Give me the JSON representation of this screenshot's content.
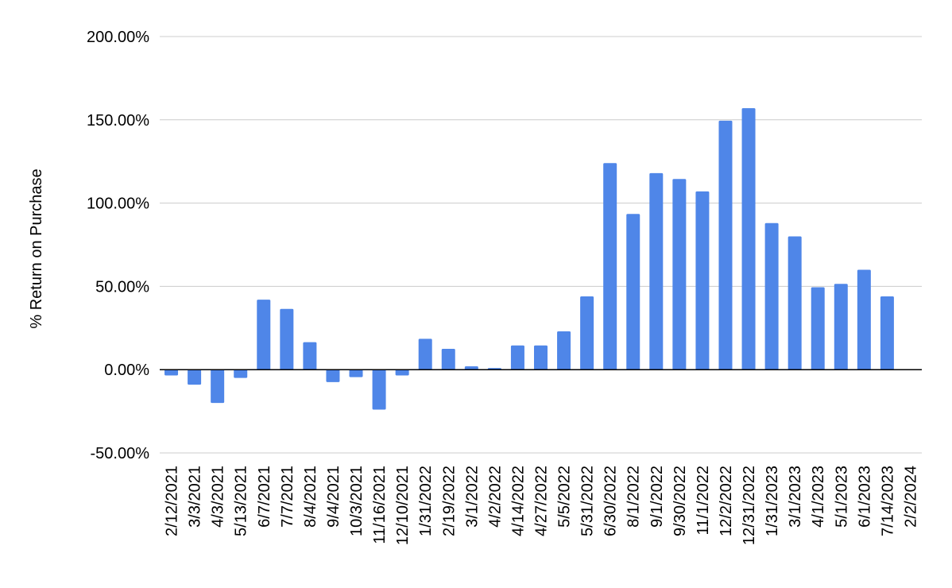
{
  "chart_data": {
    "type": "bar",
    "title": "",
    "xlabel": "",
    "ylabel": "% Return on Purchase",
    "ylim": [
      -50,
      200
    ],
    "yticks": [
      -50,
      0,
      50,
      100,
      150,
      200
    ],
    "ytick_labels": [
      "-50.00%",
      "0.00%",
      "50.00%",
      "100.00%",
      "150.00%",
      "200.00%"
    ],
    "grid": true,
    "legend": "none",
    "colors": {
      "bar": "#4f86e8",
      "grid": "#cccccc",
      "zero_line": "#000000"
    },
    "categories": [
      "2/12/2021",
      "3/3/2021",
      "4/3/2021",
      "5/13/2021",
      "6/7/2021",
      "7/7/2021",
      "8/4/2021",
      "9/4/2021",
      "10/3/2021",
      "11/16/2021",
      "12/10/2021",
      "1/31/2022",
      "2/19/2022",
      "3/1/2022",
      "4/2/2022",
      "4/14/2022",
      "4/27/2022",
      "5/5/2022",
      "5/31/2022",
      "6/30/2022",
      "8/1/2022",
      "9/1/2022",
      "9/30/2022",
      "11/1/2022",
      "12/2/2022",
      "12/31/2022",
      "1/31/2023",
      "3/1/2023",
      "4/1/2023",
      "5/1/2023",
      "6/1/2023",
      "7/14/2023",
      "2/2/2024"
    ],
    "values": [
      -3.5,
      -9,
      -20,
      -5,
      42,
      36.5,
      16.5,
      -7.5,
      -4.5,
      -24,
      -3.5,
      18.5,
      12.5,
      2,
      1,
      14.5,
      14.5,
      23,
      44,
      124,
      93.5,
      118,
      114.5,
      107,
      149.5,
      157,
      88,
      80,
      49.5,
      51.5,
      60,
      44,
      0.2
    ]
  }
}
